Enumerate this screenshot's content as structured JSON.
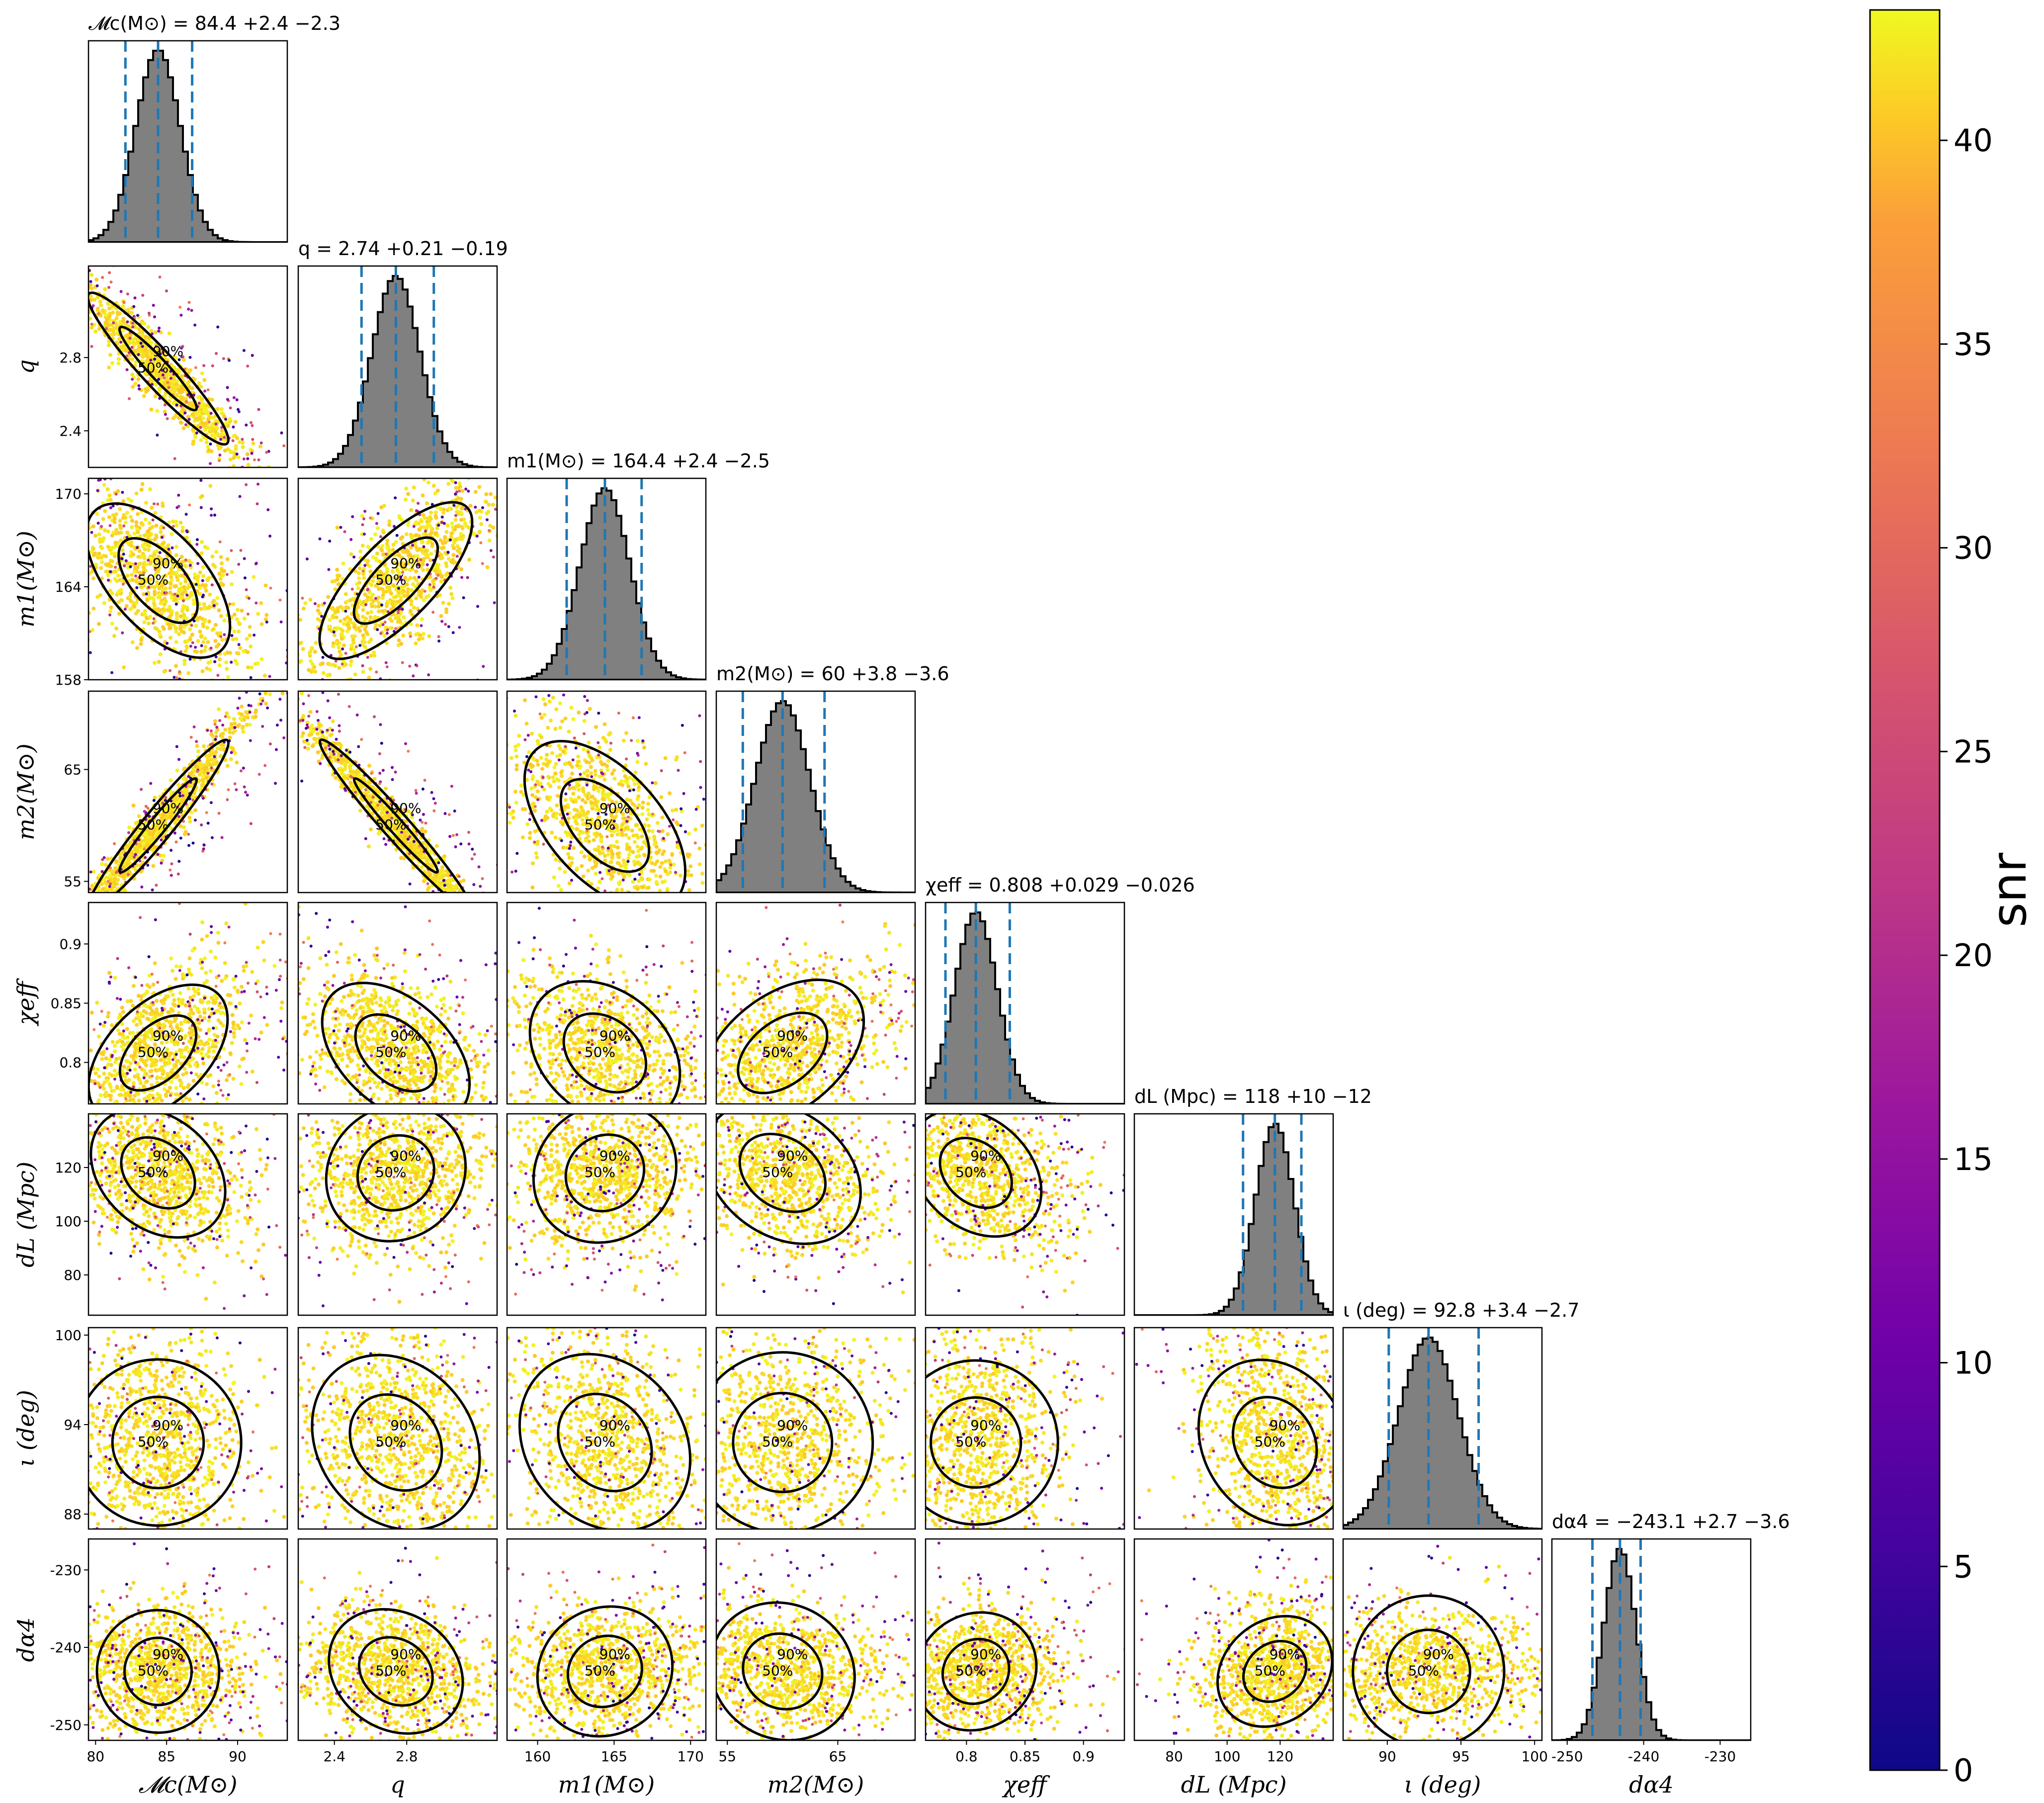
{
  "chart_data": {
    "type": "corner",
    "parameters": [
      {
        "key": "Mc",
        "axis_label": "𝓜c(M⊙)",
        "title": "𝓜c(M⊙) = 84.4 +2.4 −2.3",
        "median": 84.4,
        "plus": 2.4,
        "minus": 2.3,
        "range": [
          79.5,
          93.5
        ],
        "ticks": [
          80,
          85,
          90
        ]
      },
      {
        "key": "q",
        "axis_label": "q",
        "title": "q = 2.74 +0.21 −0.19",
        "median": 2.74,
        "plus": 0.21,
        "minus": 0.19,
        "range": [
          2.2,
          3.3
        ],
        "ticks": [
          2.4,
          2.8
        ]
      },
      {
        "key": "m1",
        "axis_label": "m1(M⊙)",
        "title": "m1(M⊙) = 164.4 +2.4 −2.5",
        "median": 164.4,
        "plus": 2.4,
        "minus": 2.5,
        "range": [
          158,
          171
        ],
        "ticks": [
          158,
          164,
          170
        ],
        "xticks": [
          160,
          165,
          170
        ]
      },
      {
        "key": "m2",
        "axis_label": "m2(M⊙)",
        "title": "m2(M⊙) = 60 +3.8 −3.6",
        "median": 60,
        "plus": 3.8,
        "minus": 3.6,
        "range": [
          54,
          72
        ],
        "ticks": [
          55,
          65
        ]
      },
      {
        "key": "chi_eff",
        "axis_label": "χeff",
        "title": "χeff = 0.808 +0.029 −0.026",
        "median": 0.808,
        "plus": 0.029,
        "minus": 0.026,
        "range": [
          0.765,
          0.935
        ],
        "ticks": [
          0.8,
          0.85,
          0.9
        ],
        "xticks": [
          0.8,
          0.85,
          0.9
        ]
      },
      {
        "key": "dL",
        "axis_label": "dL (Mpc)",
        "title": "dL (Mpc) = 118 +10 −12",
        "median": 118,
        "plus": 10,
        "minus": 12,
        "range": [
          65,
          140
        ],
        "ticks": [
          80,
          100,
          120
        ],
        "xticks": [
          80,
          100,
          120
        ]
      },
      {
        "key": "iota",
        "axis_label": "ι (deg)",
        "title": "ι (deg) = 92.8 +3.4 −2.7",
        "median": 92.8,
        "plus": 3.4,
        "minus": 2.7,
        "range": [
          87,
          100.5
        ],
        "ticks": [
          88,
          94,
          100
        ],
        "xticks": [
          90,
          95,
          100
        ]
      },
      {
        "key": "dalpha4",
        "axis_label": "dα4",
        "title": "dα4 = −243.1 +2.7 −3.6",
        "median": -243.1,
        "plus": 2.7,
        "minus": 3.6,
        "range": [
          -252,
          -226
        ],
        "ticks": [
          -250,
          -240,
          -230
        ]
      }
    ],
    "contour_levels": [
      "50%",
      "90%"
    ],
    "colorbar": {
      "label": "snr",
      "min": 0,
      "max": 43.2,
      "ticks": [
        0,
        5,
        10,
        15,
        20,
        25,
        30,
        35,
        40
      ],
      "colormap": "plasma"
    },
    "colors": {
      "hist_fill": "#808080",
      "quantile_line": "#1f77b4"
    }
  }
}
